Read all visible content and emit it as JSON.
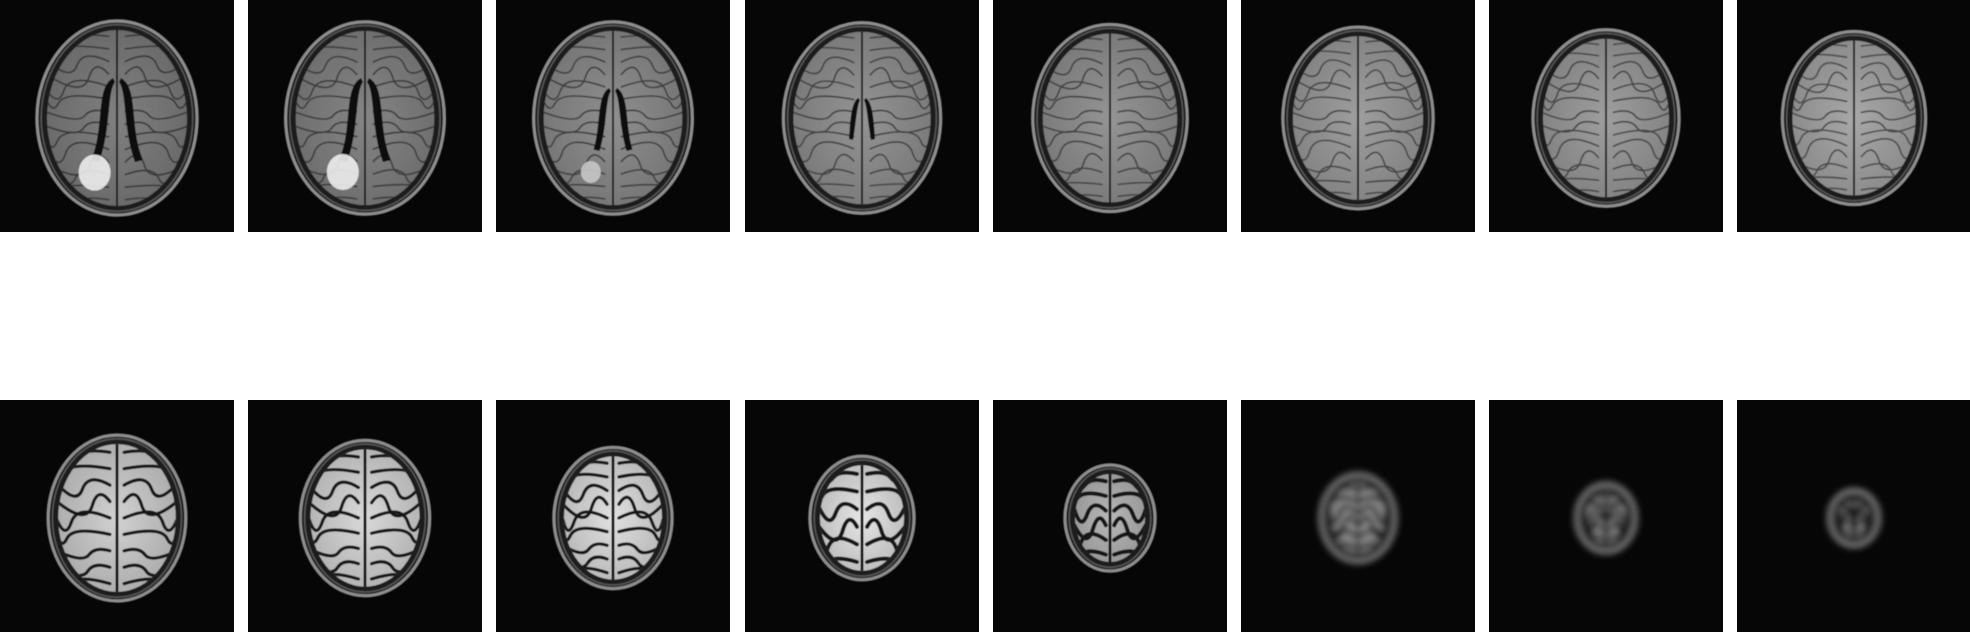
{
  "image": {
    "description": "",
    "rows": 2,
    "columns": 8,
    "background_color": "#ffffff",
    "tile_background": "#060606"
  },
  "slices": [
    {
      "row": 1,
      "index": 1,
      "brain_scale": 1.0,
      "brightness": 0.5,
      "ventricles": "large",
      "lesion": "strong",
      "gyri": "fine"
    },
    {
      "row": 1,
      "index": 2,
      "brain_scale": 0.99,
      "brightness": 0.52,
      "ventricles": "large",
      "lesion": "strong",
      "gyri": "fine"
    },
    {
      "row": 1,
      "index": 3,
      "brain_scale": 0.99,
      "brightness": 0.56,
      "ventricles": "medium",
      "lesion": "faint",
      "gyri": "fine"
    },
    {
      "row": 1,
      "index": 4,
      "brain_scale": 0.98,
      "brightness": 0.58,
      "ventricles": "small",
      "lesion": "none",
      "gyri": "fine"
    },
    {
      "row": 1,
      "index": 5,
      "brain_scale": 0.96,
      "brightness": 0.58,
      "ventricles": "none",
      "lesion": "none",
      "gyri": "fine"
    },
    {
      "row": 1,
      "index": 6,
      "brain_scale": 0.93,
      "brightness": 0.62,
      "ventricles": "none",
      "lesion": "none",
      "gyri": "fine"
    },
    {
      "row": 1,
      "index": 7,
      "brain_scale": 0.9,
      "brightness": 0.62,
      "ventricles": "none",
      "lesion": "none",
      "gyri": "fine"
    },
    {
      "row": 1,
      "index": 8,
      "brain_scale": 0.88,
      "brightness": 0.66,
      "ventricles": "none",
      "lesion": "none",
      "gyri": "fine"
    },
    {
      "row": 2,
      "index": 9,
      "brain_scale": 0.84,
      "brightness": 0.82,
      "ventricles": "none",
      "lesion": "none",
      "gyri": "coarse"
    },
    {
      "row": 2,
      "index": 10,
      "brain_scale": 0.78,
      "brightness": 0.85,
      "ventricles": "none",
      "lesion": "none",
      "gyri": "coarse"
    },
    {
      "row": 2,
      "index": 11,
      "brain_scale": 0.7,
      "brightness": 0.88,
      "ventricles": "none",
      "lesion": "none",
      "gyri": "coarse"
    },
    {
      "row": 2,
      "index": 12,
      "brain_scale": 0.6,
      "brightness": 0.9,
      "ventricles": "none",
      "lesion": "none",
      "gyri": "sparse"
    },
    {
      "row": 2,
      "index": 13,
      "brain_scale": 0.5,
      "brightness": 0.72,
      "ventricles": "none",
      "lesion": "none",
      "gyri": "sparse"
    },
    {
      "row": 2,
      "index": 14,
      "brain_scale": 0.4,
      "brightness": 0.6,
      "ventricles": "none",
      "lesion": "none",
      "gyri": "blurred"
    },
    {
      "row": 2,
      "index": 15,
      "brain_scale": 0.29,
      "brightness": 0.62,
      "ventricles": "none",
      "lesion": "none",
      "gyri": "blurred"
    },
    {
      "row": 2,
      "index": 16,
      "brain_scale": 0.22,
      "brightness": 0.72,
      "ventricles": "none",
      "lesion": "none",
      "gyri": "blurred"
    }
  ]
}
